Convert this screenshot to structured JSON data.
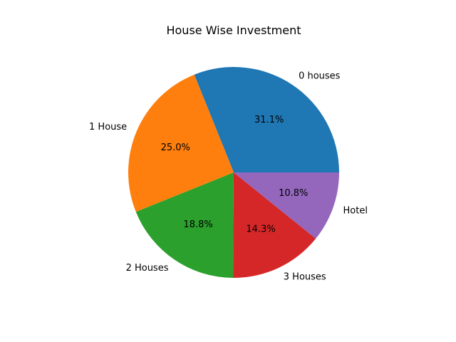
{
  "chart_data": {
    "type": "pie",
    "title": "House Wise Investment",
    "slices": [
      {
        "label": "0 houses",
        "value": 31.1,
        "pct_label": "31.1%",
        "color": "#1f77b4"
      },
      {
        "label": "1 House",
        "value": 25.0,
        "pct_label": "25.0%",
        "color": "#ff7f0e"
      },
      {
        "label": "2 Houses",
        "value": 18.8,
        "pct_label": "18.8%",
        "color": "#2ca02c"
      },
      {
        "label": "3 Houses",
        "value": 14.3,
        "pct_label": "14.3%",
        "color": "#d62728"
      },
      {
        "label": "Hotel",
        "value": 10.8,
        "pct_label": "10.8%",
        "color": "#9467bd"
      }
    ],
    "start_angle_deg": 0,
    "direction": "counterclockwise",
    "legend": "none"
  }
}
